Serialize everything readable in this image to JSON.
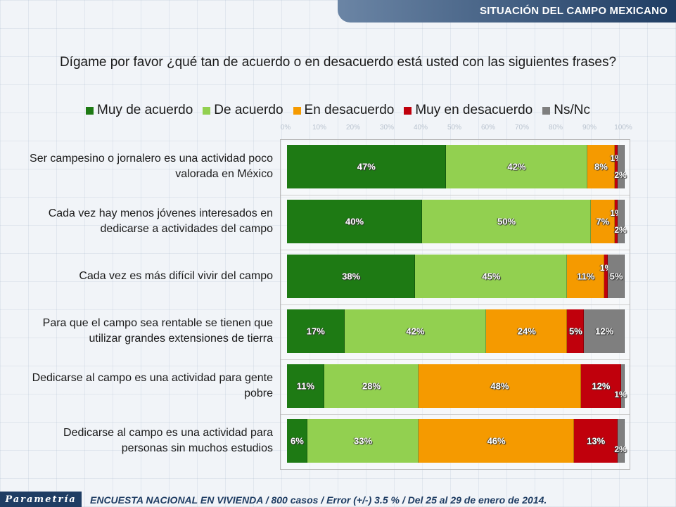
{
  "header": {
    "title": "SITUACIÓN DEL CAMPO MEXICANO"
  },
  "question": "Dígame por favor ¿qué tan de acuerdo o en desacuerdo está usted con las siguientes frases?",
  "footer": {
    "logo": "Parametría",
    "note": "ENCUESTA NACIONAL EN VIVIENDA / 800 casos / Error (+/-) 3.5 % / Del 25 al 29 de enero de 2014."
  },
  "colors": {
    "muy_de_acuerdo": "#1e7a14",
    "de_acuerdo": "#92d050",
    "en_desacuerdo": "#f59a00",
    "muy_en_desacuerdo": "#c0000c",
    "ns_nc": "#7f7f7f"
  },
  "chart_data": {
    "type": "bar",
    "orientation": "horizontal",
    "stacked": true,
    "xlim": [
      0,
      100
    ],
    "axis_ticks": [
      "0%",
      "10%",
      "20%",
      "30%",
      "40%",
      "50%",
      "60%",
      "70%",
      "80%",
      "90%",
      "100%"
    ],
    "legend_position": "top",
    "categories": [
      "Ser campesino o jornalero es una actividad poco valorada en México",
      "Cada vez hay menos jóvenes interesados en dedicarse a actividades del campo",
      "Cada vez es más difícil vivir del campo",
      "Para que el campo sea rentable se tienen que utilizar grandes extensiones de tierra",
      "Dedicarse al campo es una actividad para gente pobre",
      "Dedicarse al campo es una actividad para personas sin muchos estudios"
    ],
    "series": [
      {
        "name": "Muy de acuerdo",
        "color_key": "muy_de_acuerdo",
        "values": [
          47,
          40,
          38,
          17,
          11,
          6
        ]
      },
      {
        "name": "De acuerdo",
        "color_key": "de_acuerdo",
        "values": [
          42,
          50,
          45,
          42,
          28,
          33
        ]
      },
      {
        "name": "En desacuerdo",
        "color_key": "en_desacuerdo",
        "values": [
          8,
          7,
          11,
          24,
          48,
          46
        ]
      },
      {
        "name": "Muy en desacuerdo",
        "color_key": "muy_en_desacuerdo",
        "values": [
          1,
          1,
          1,
          5,
          12,
          13
        ]
      },
      {
        "name": "Ns/Nc",
        "color_key": "ns_nc",
        "values": [
          2,
          2,
          5,
          12,
          1,
          2
        ]
      }
    ]
  }
}
